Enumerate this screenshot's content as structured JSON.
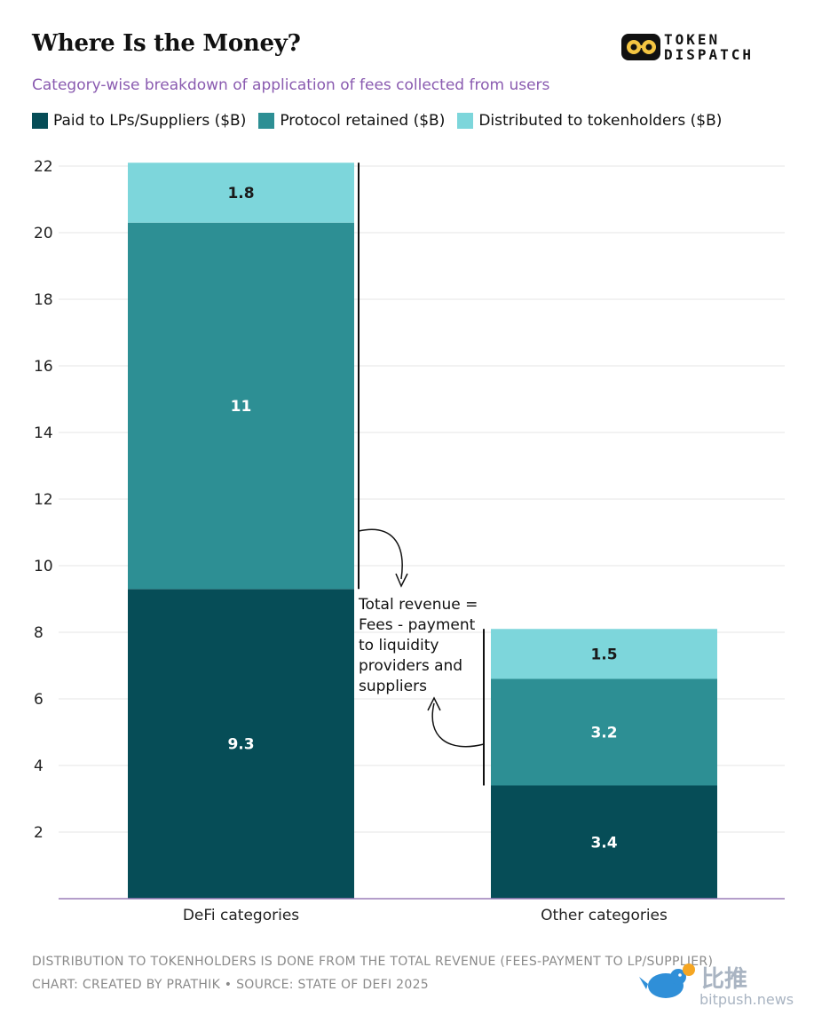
{
  "header": {
    "title": "Where Is the Money?",
    "subtitle": "Category-wise breakdown of application of fees collected from users",
    "logo_line1": "TOKEN",
    "logo_line2": "DISPATCH"
  },
  "chart_data": {
    "type": "bar",
    "stacked": true,
    "categories": [
      "DeFi categories",
      "Other categories"
    ],
    "series": [
      {
        "name": "Paid to LPs/Suppliers ($B)",
        "values": [
          9.3,
          3.4
        ],
        "color": "#064d57",
        "label_color": "#ffffff"
      },
      {
        "name": "Protocol retained ($B)",
        "values": [
          11,
          3.2
        ],
        "color": "#2d8f94",
        "label_color": "#ffffff"
      },
      {
        "name": "Distributed to tokenholders ($B)",
        "values": [
          1.8,
          1.5
        ],
        "color": "#7dd6db",
        "label_color": "#1a1a1a"
      }
    ],
    "data_labels": [
      [
        "9.3",
        "3.4"
      ],
      [
        "11",
        "3.2"
      ],
      [
        "1.8",
        "1.5"
      ]
    ],
    "y_ticks": [
      "2",
      "4",
      "6",
      "8",
      "10",
      "12",
      "14",
      "16",
      "18",
      "20",
      "22"
    ],
    "ylim": [
      0,
      22
    ],
    "grid": true,
    "legend_position": "top-left",
    "annotation": [
      "Total revenue =",
      "Fees - payment",
      "to liquidity",
      "providers and",
      "suppliers"
    ]
  },
  "footer": {
    "note": "DISTRIBUTION TO TOKENHOLDERS IS DONE FROM THE TOTAL REVENUE (FEES-PAYMENT TO LP/SUPPLIER)",
    "credit": "CHART: CREATED BY PRATHIK • SOURCE: STATE OF DEFI 2025"
  },
  "watermark": {
    "cn": "比推",
    "en": "bitpush.news"
  }
}
